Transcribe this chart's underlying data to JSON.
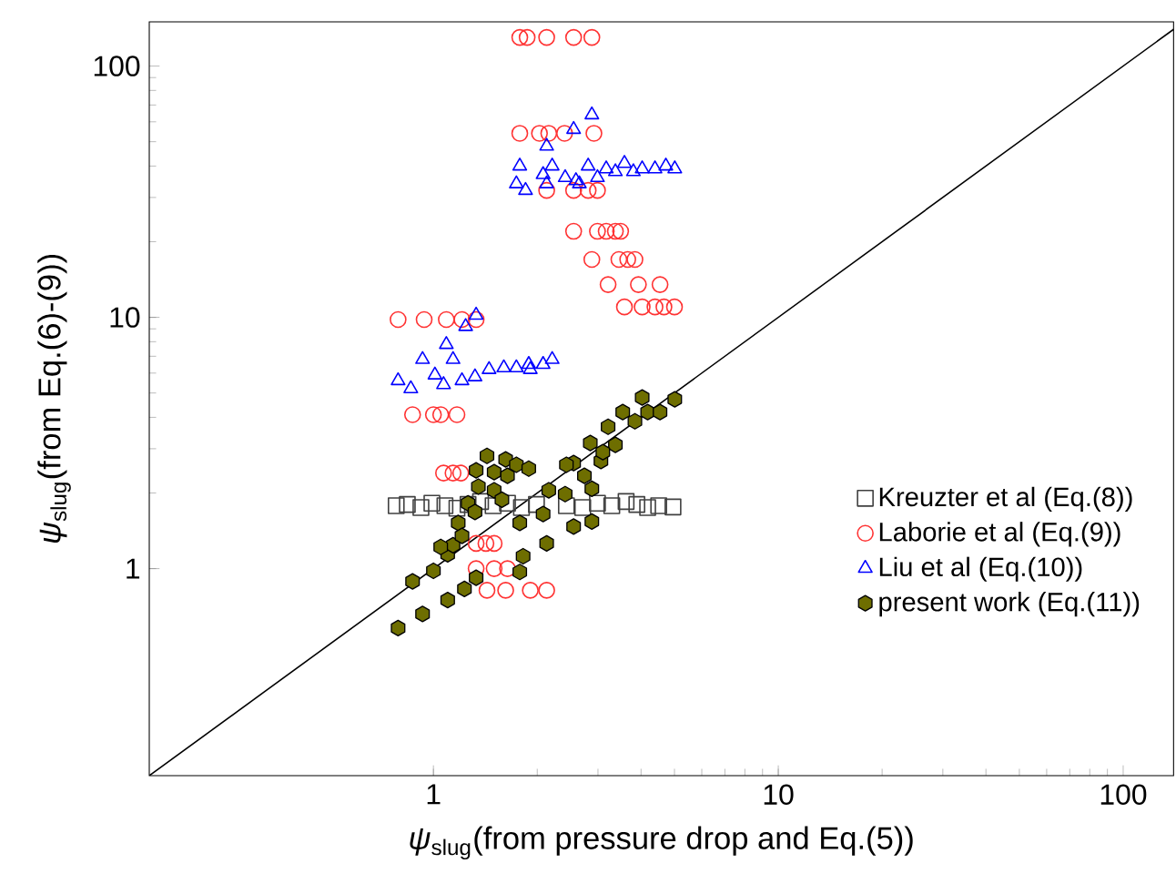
{
  "chart_data": {
    "type": "scatter",
    "log": "xy",
    "xlabel": "*ψ*$_{slug}$(from pressure drop and Eq.(5))",
    "ylabel": "*ψ*$_{slug}$(from Eq.(6)-(9))",
    "xlim": [
      0.15,
      140
    ],
    "ylim": [
      0.15,
      150
    ],
    "xticks": [
      1,
      10,
      100
    ],
    "yticks": [
      1,
      10,
      100
    ],
    "grid": false,
    "legend": "bottom right",
    "series": [
      {
        "name": "Kreuzter et al (Eq.(8))",
        "color": "#404040",
        "marker": "square",
        "x": [
          0.78,
          0.84,
          0.92,
          0.99,
          1.08,
          1.17,
          1.26,
          1.37,
          1.49,
          1.64,
          1.8,
          1.99,
          2.21,
          2.43,
          2.71,
          2.99,
          3.29,
          3.62,
          3.89,
          4.18,
          4.5,
          4.95
        ],
        "values": [
          1.78,
          1.8,
          1.75,
          1.82,
          1.78,
          1.74,
          1.8,
          1.85,
          1.78,
          1.82,
          1.75,
          1.8,
          null,
          1.78,
          1.75,
          1.82,
          1.78,
          1.85,
          1.8,
          1.75,
          1.78,
          1.76
        ]
      },
      {
        "name": "Laborie et al (Eq.(9))",
        "color": "#ff3333",
        "marker": "circle",
        "x": [
          1.78,
          1.87,
          2.13,
          2.55,
          2.88,
          1.78,
          2.03,
          2.16,
          2.4,
          2.92,
          2.13,
          2.55,
          2.81,
          2.99,
          2.55,
          2.99,
          3.17,
          3.37,
          3.49,
          2.88,
          3.45,
          3.66,
          3.84,
          3.21,
          3.93,
          4.54,
          3.58,
          4.03,
          4.39,
          4.66,
          5.0,
          0.79,
          0.94,
          1.09,
          1.21,
          1.33,
          0.87,
          1.0,
          1.05,
          1.17,
          1.07,
          1.14,
          1.2,
          1.33,
          1.42,
          1.5,
          1.33,
          1.5,
          1.64,
          1.43,
          1.62,
          1.91,
          2.13
        ],
        "values": [
          130,
          130,
          130,
          130,
          130,
          54,
          54,
          54,
          54,
          54,
          32,
          32,
          32,
          32,
          22,
          22,
          22,
          22,
          22,
          17,
          17,
          17,
          17,
          13.5,
          13.5,
          13.5,
          11,
          11,
          11,
          11,
          11,
          9.8,
          9.8,
          9.8,
          9.8,
          9.8,
          4.1,
          4.1,
          4.1,
          4.1,
          2.4,
          2.4,
          2.4,
          1.26,
          1.26,
          1.26,
          1.0,
          1.0,
          1.0,
          0.82,
          0.82,
          0.82,
          0.82
        ]
      },
      {
        "name": "Liu et al (Eq.(10))",
        "color": "#0000ff",
        "marker": "triangle",
        "x": [
          2.88,
          2.55,
          2.13,
          1.74,
          1.78,
          1.85,
          2.08,
          2.21,
          2.41,
          2.59,
          2.81,
          2.99,
          3.17,
          3.37,
          3.58,
          3.8,
          4.03,
          4.39,
          4.72,
          5.01,
          2.13,
          2.65,
          1.33,
          1.24,
          1.09,
          1.14,
          0.93,
          0.79,
          0.86,
          1.01,
          1.07,
          1.21,
          1.32,
          1.45,
          1.6,
          1.74,
          1.89,
          2.08,
          2.21,
          1.91
        ],
        "values": [
          64,
          56,
          48,
          34,
          40,
          32,
          37,
          40,
          36,
          35,
          40,
          36,
          39,
          38,
          41,
          38,
          39,
          39,
          40,
          39,
          34,
          34,
          10.2,
          9.2,
          7.8,
          6.8,
          6.8,
          5.6,
          5.2,
          5.9,
          5.4,
          5.6,
          5.8,
          6.2,
          6.3,
          6.3,
          6.5,
          6.5,
          6.8,
          6.2
        ]
      },
      {
        "name": "present work (Eq.(11))",
        "color": "#6e6e00",
        "x": [
          0.79,
          0.93,
          1.1,
          1.23,
          1.33,
          0.87,
          1.0,
          1.1,
          1.14,
          1.05,
          1.18,
          1.21,
          1.26,
          1.32,
          1.33,
          1.43,
          1.5,
          1.35,
          1.5,
          1.62,
          1.74,
          1.89,
          1.64,
          1.58,
          1.78,
          1.82,
          1.78,
          2.13,
          2.08,
          2.16,
          2.41,
          2.55,
          2.55,
          2.88,
          2.88,
          2.74,
          2.85,
          3.06,
          3.21,
          3.37,
          3.54,
          3.84,
          4.03,
          4.18,
          4.54,
          5.01,
          2.43,
          3.1
        ],
        "values": [
          0.58,
          0.66,
          0.75,
          0.83,
          0.92,
          0.89,
          0.98,
          1.14,
          1.24,
          1.22,
          1.52,
          1.35,
          1.82,
          1.68,
          2.46,
          2.81,
          2.42,
          2.12,
          2.05,
          2.72,
          2.59,
          2.5,
          2.34,
          1.88,
          1.52,
          1.12,
          0.97,
          1.26,
          1.65,
          2.05,
          1.98,
          2.63,
          1.47,
          1.54,
          2.08,
          2.34,
          3.16,
          2.68,
          3.67,
          3.11,
          4.2,
          3.86,
          4.8,
          4.2,
          4.2,
          4.72,
          2.59,
          2.91
        ]
      },
      {
        "type": "line",
        "color": "#000000",
        "marker": "none",
        "x": [
          0.15,
          140
        ],
        "values": [
          0.15,
          140
        ]
      }
    ]
  }
}
